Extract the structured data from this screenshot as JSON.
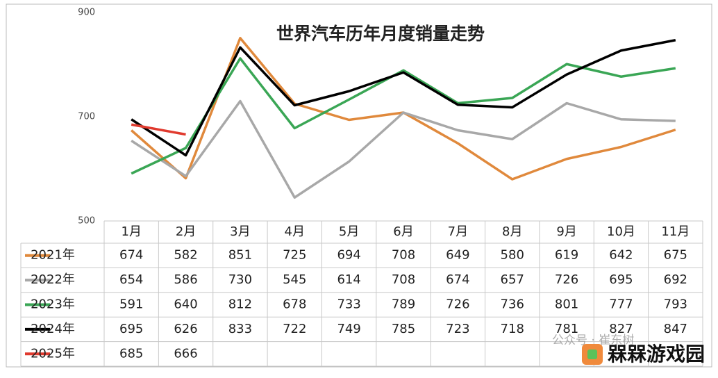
{
  "chart_data": {
    "type": "line",
    "title": "世界汽车历年月度销量走势",
    "categories": [
      "1月",
      "2月",
      "3月",
      "4月",
      "5月",
      "6月",
      "7月",
      "8月",
      "9月",
      "10月",
      "11月"
    ],
    "series": [
      {
        "name": "2021年",
        "color": "#e0893c",
        "values": [
          674,
          582,
          851,
          725,
          694,
          708,
          649,
          580,
          619,
          642,
          675
        ]
      },
      {
        "name": "2022年",
        "color": "#a8a8a8",
        "values": [
          654,
          586,
          730,
          545,
          614,
          708,
          674,
          657,
          726,
          695,
          692
        ]
      },
      {
        "name": "2023年",
        "color": "#3aa655",
        "values": [
          591,
          640,
          812,
          678,
          733,
          789,
          726,
          736,
          801,
          777,
          793
        ]
      },
      {
        "name": "2024年",
        "color": "#000000",
        "values": [
          695,
          626,
          833,
          722,
          749,
          785,
          723,
          718,
          781,
          827,
          847
        ]
      },
      {
        "name": "2025年",
        "color": "#e03a2e",
        "values": [
          685,
          666,
          null,
          null,
          null,
          null,
          null,
          null,
          null,
          null,
          null
        ]
      }
    ],
    "ylim": [
      500,
      900
    ],
    "yticks": [
      500,
      700,
      900
    ],
    "grid": false,
    "watermarks": [
      "公众号 · 崔东树",
      "槑槑游戏园"
    ]
  }
}
